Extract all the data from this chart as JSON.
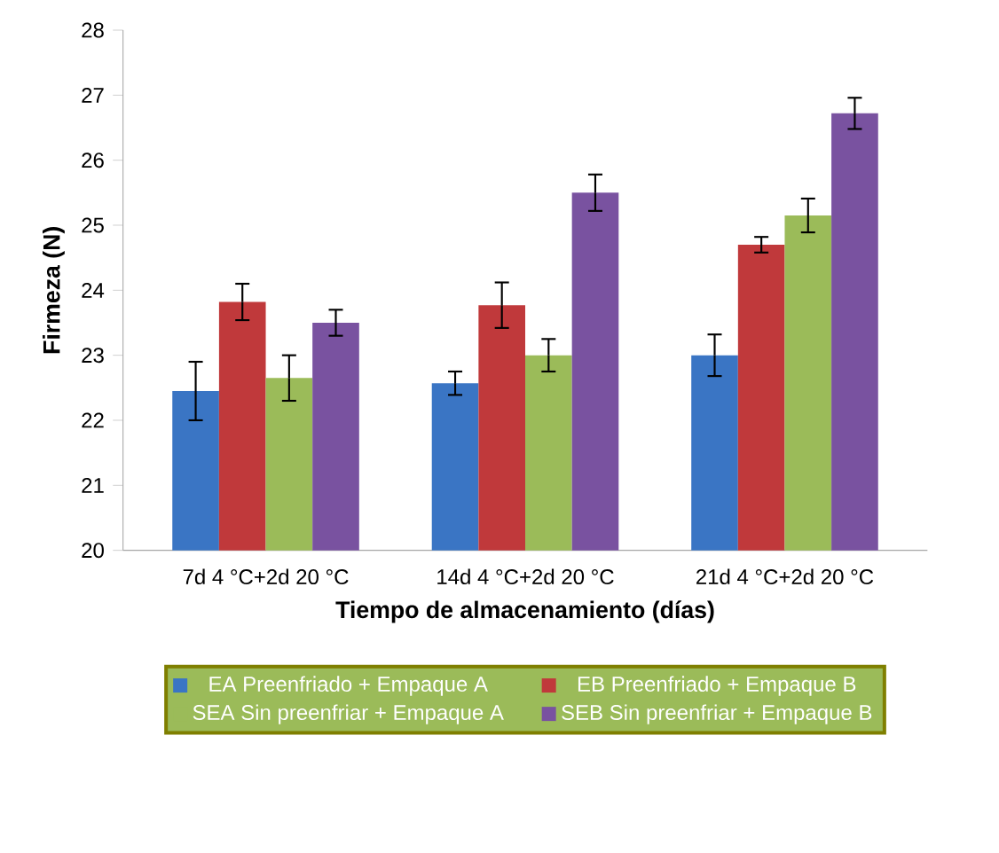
{
  "chart_data": {
    "type": "bar",
    "xlabel": "Tiempo de almacenamiento (días)",
    "ylabel": "Firmeza (N)",
    "categories": [
      "7d 4 °C+2d 20 °C",
      "14d 4 °C+2d 20 °C",
      "21d 4 °C+2d 20 °C"
    ],
    "series": [
      {
        "name": "EA Preenfriado + Empaque A",
        "color": "#3a75c4",
        "values": [
          22.45,
          22.57,
          23.0
        ],
        "errors": [
          0.45,
          0.18,
          0.32
        ]
      },
      {
        "name": "EB Preenfriado + Empaque B",
        "color": "#c0393b",
        "values": [
          23.82,
          23.77,
          24.7
        ],
        "errors": [
          0.28,
          0.35,
          0.12
        ]
      },
      {
        "name": "SEA Sin preenfriar + Empaque A",
        "color": "#9bbb59",
        "values": [
          22.65,
          23.0,
          25.15
        ],
        "errors": [
          0.35,
          0.25,
          0.26
        ]
      },
      {
        "name": "SEB Sin preenfriar + Empaque B",
        "color": "#7952a0",
        "values": [
          23.5,
          25.5,
          26.72
        ],
        "errors": [
          0.2,
          0.28,
          0.24
        ]
      }
    ],
    "ylim": [
      20,
      28
    ],
    "yticks": [
      20,
      21,
      22,
      23,
      24,
      25,
      26,
      27,
      28
    ],
    "grid": false,
    "legend": "bottom"
  }
}
